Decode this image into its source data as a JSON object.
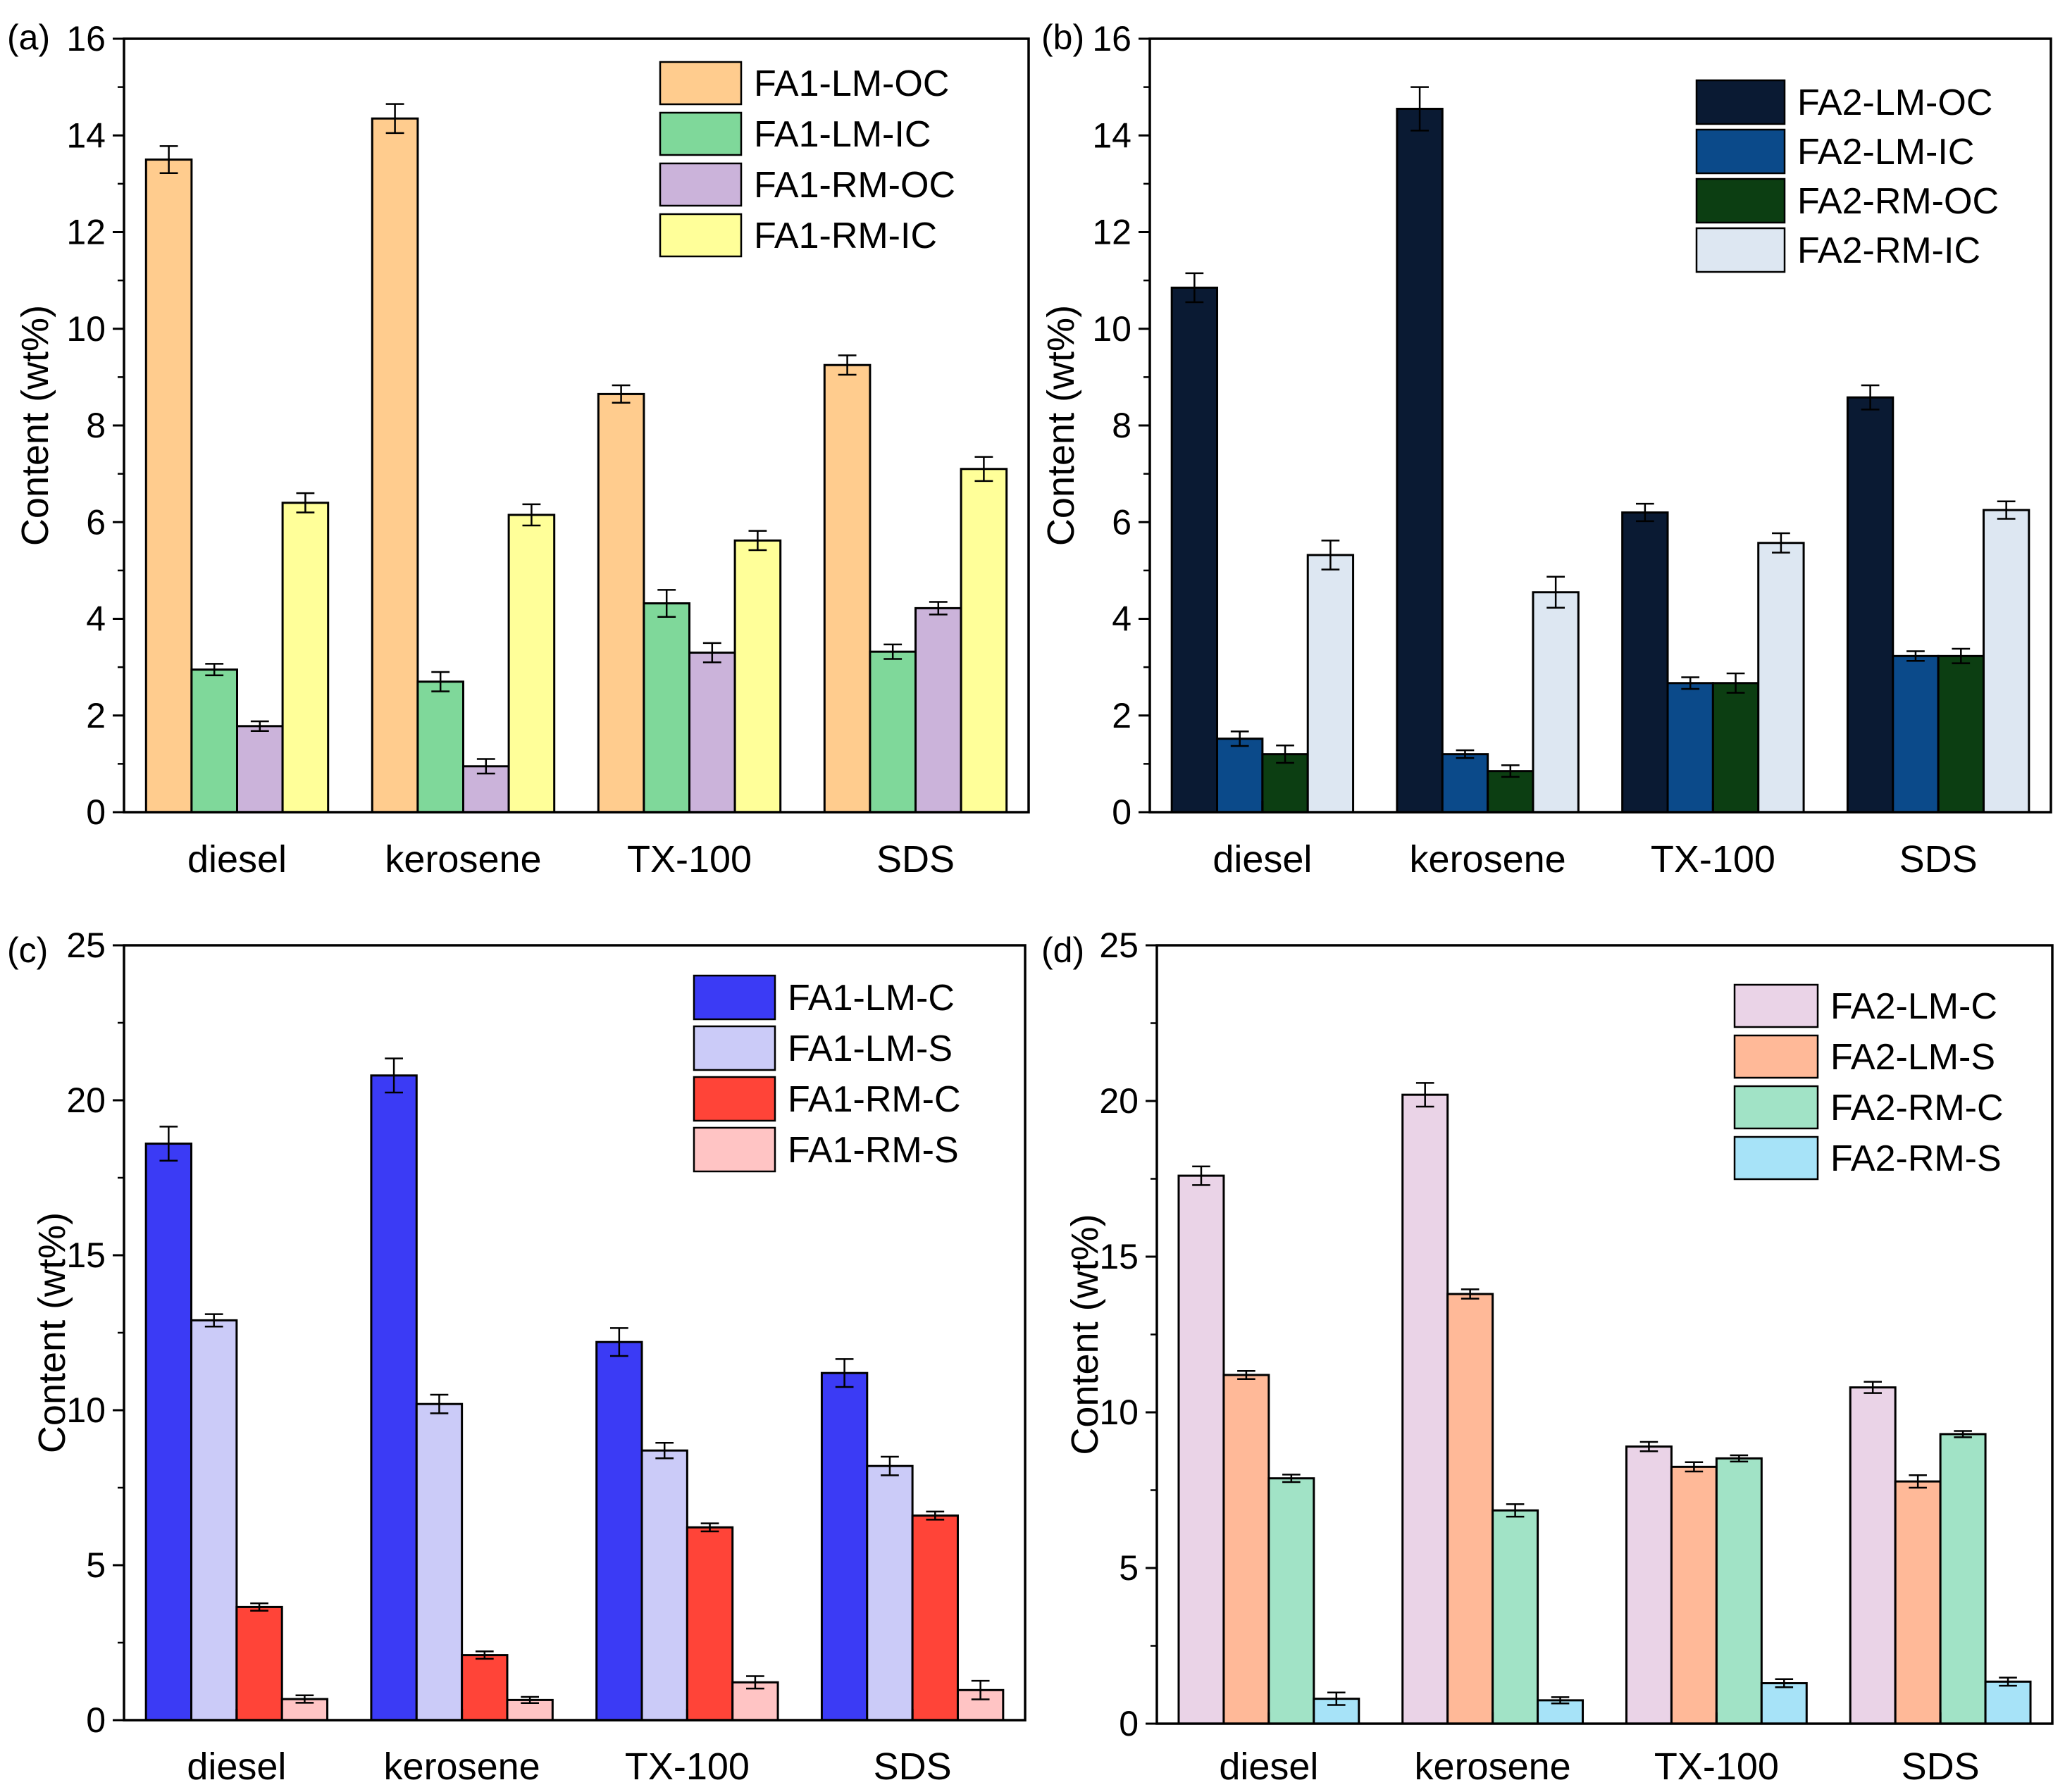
{
  "figure": {
    "panels": [
      "a",
      "b",
      "c",
      "d"
    ]
  },
  "chart_data": [
    {
      "id": "a",
      "panel_label": "(a)",
      "type": "bar",
      "title": "",
      "xlabel": "",
      "ylabel": "Content (wt%)",
      "ylim": [
        0,
        16
      ],
      "yticks": [
        0,
        2,
        4,
        6,
        8,
        10,
        12,
        14,
        16
      ],
      "minor_ticks": true,
      "grid": false,
      "legend_position": "top-right",
      "categories": [
        "diesel",
        "kerosene",
        "TX-100",
        "SDS"
      ],
      "series": [
        {
          "name": "FA1-LM-OC",
          "color": "#FFCC8E",
          "values": [
            13.5,
            14.35,
            8.65,
            9.25
          ],
          "errors": [
            0.28,
            0.3,
            0.18,
            0.2
          ]
        },
        {
          "name": "FA1-LM-IC",
          "color": "#7FD89A",
          "values": [
            2.95,
            2.7,
            4.32,
            3.32
          ],
          "errors": [
            0.12,
            0.2,
            0.28,
            0.15
          ]
        },
        {
          "name": "FA1-RM-OC",
          "color": "#CBB3DA",
          "values": [
            1.78,
            0.95,
            3.3,
            4.22
          ],
          "errors": [
            0.1,
            0.15,
            0.2,
            0.13
          ]
        },
        {
          "name": "FA1-RM-IC",
          "color": "#FFFF99",
          "values": [
            6.4,
            6.15,
            5.62,
            7.1
          ],
          "errors": [
            0.2,
            0.22,
            0.2,
            0.25
          ]
        }
      ]
    },
    {
      "id": "b",
      "panel_label": "(b)",
      "type": "bar",
      "title": "",
      "xlabel": "",
      "ylabel": "Content (wt%)",
      "ylim": [
        0,
        16
      ],
      "yticks": [
        0,
        2,
        4,
        6,
        8,
        10,
        12,
        14,
        16
      ],
      "minor_ticks": true,
      "grid": false,
      "legend_position": "top-right",
      "categories": [
        "diesel",
        "kerosene",
        "TX-100",
        "SDS"
      ],
      "series": [
        {
          "name": "FA2-LM-OC",
          "color": "#0A1A33",
          "values": [
            10.85,
            14.55,
            6.2,
            8.58
          ],
          "errors": [
            0.3,
            0.45,
            0.18,
            0.25
          ]
        },
        {
          "name": "FA2-LM-IC",
          "color": "#0B4A8A",
          "values": [
            1.52,
            1.2,
            2.67,
            3.23
          ],
          "errors": [
            0.15,
            0.08,
            0.12,
            0.1
          ]
        },
        {
          "name": "FA2-RM-OC",
          "color": "#0C3E12",
          "values": [
            1.2,
            0.85,
            2.67,
            3.23
          ],
          "errors": [
            0.18,
            0.12,
            0.2,
            0.15
          ]
        },
        {
          "name": "FA2-RM-IC",
          "color": "#DDE7F2",
          "values": [
            5.32,
            4.55,
            5.57,
            6.25
          ],
          "errors": [
            0.3,
            0.32,
            0.2,
            0.18
          ]
        }
      ]
    },
    {
      "id": "c",
      "panel_label": "(c)",
      "type": "bar",
      "title": "",
      "xlabel": "",
      "ylabel": "Content (wt%)",
      "ylim": [
        0,
        25
      ],
      "yticks": [
        0,
        5,
        10,
        15,
        20,
        25
      ],
      "minor_ticks": true,
      "grid": false,
      "legend_position": "top-right",
      "categories": [
        "diesel",
        "kerosene",
        "TX-100",
        "SDS"
      ],
      "series": [
        {
          "name": "FA1-LM-C",
          "color": "#3B3BF5",
          "values": [
            18.6,
            20.8,
            12.2,
            11.2
          ],
          "errors": [
            0.55,
            0.55,
            0.45,
            0.45
          ]
        },
        {
          "name": "FA1-LM-S",
          "color": "#CBCBF8",
          "values": [
            12.9,
            10.2,
            8.7,
            8.2
          ],
          "errors": [
            0.2,
            0.3,
            0.25,
            0.3
          ]
        },
        {
          "name": "FA1-RM-C",
          "color": "#FF4438",
          "values": [
            3.65,
            2.1,
            6.22,
            6.6
          ],
          "errors": [
            0.12,
            0.12,
            0.13,
            0.13
          ]
        },
        {
          "name": "FA1-RM-S",
          "color": "#FFC4C4",
          "values": [
            0.68,
            0.65,
            1.22,
            0.97
          ],
          "errors": [
            0.12,
            0.1,
            0.2,
            0.3
          ]
        }
      ]
    },
    {
      "id": "d",
      "panel_label": "(d)",
      "type": "bar",
      "title": "",
      "xlabel": "",
      "ylabel": "Content (wt%)",
      "ylim": [
        0,
        25
      ],
      "yticks": [
        0,
        5,
        10,
        15,
        20,
        25
      ],
      "minor_ticks": true,
      "grid": false,
      "legend_position": "top-right",
      "categories": [
        "diesel",
        "kerosene",
        "TX-100",
        "SDS"
      ],
      "series": [
        {
          "name": "FA2-LM-C",
          "color": "#EAD3E7",
          "values": [
            17.6,
            20.2,
            8.9,
            10.8
          ],
          "errors": [
            0.3,
            0.38,
            0.15,
            0.18
          ]
        },
        {
          "name": "FA2-LM-S",
          "color": "#FFB998",
          "values": [
            11.2,
            13.8,
            8.25,
            7.78
          ],
          "errors": [
            0.13,
            0.15,
            0.15,
            0.2
          ]
        },
        {
          "name": "FA2-RM-C",
          "color": "#A1E3C6",
          "values": [
            7.88,
            6.85,
            8.52,
            9.3
          ],
          "errors": [
            0.12,
            0.2,
            0.1,
            0.1
          ]
        },
        {
          "name": "FA2-RM-S",
          "color": "#A7E3F8",
          "values": [
            0.8,
            0.75,
            1.3,
            1.35
          ],
          "errors": [
            0.2,
            0.1,
            0.13,
            0.13
          ]
        }
      ]
    }
  ]
}
